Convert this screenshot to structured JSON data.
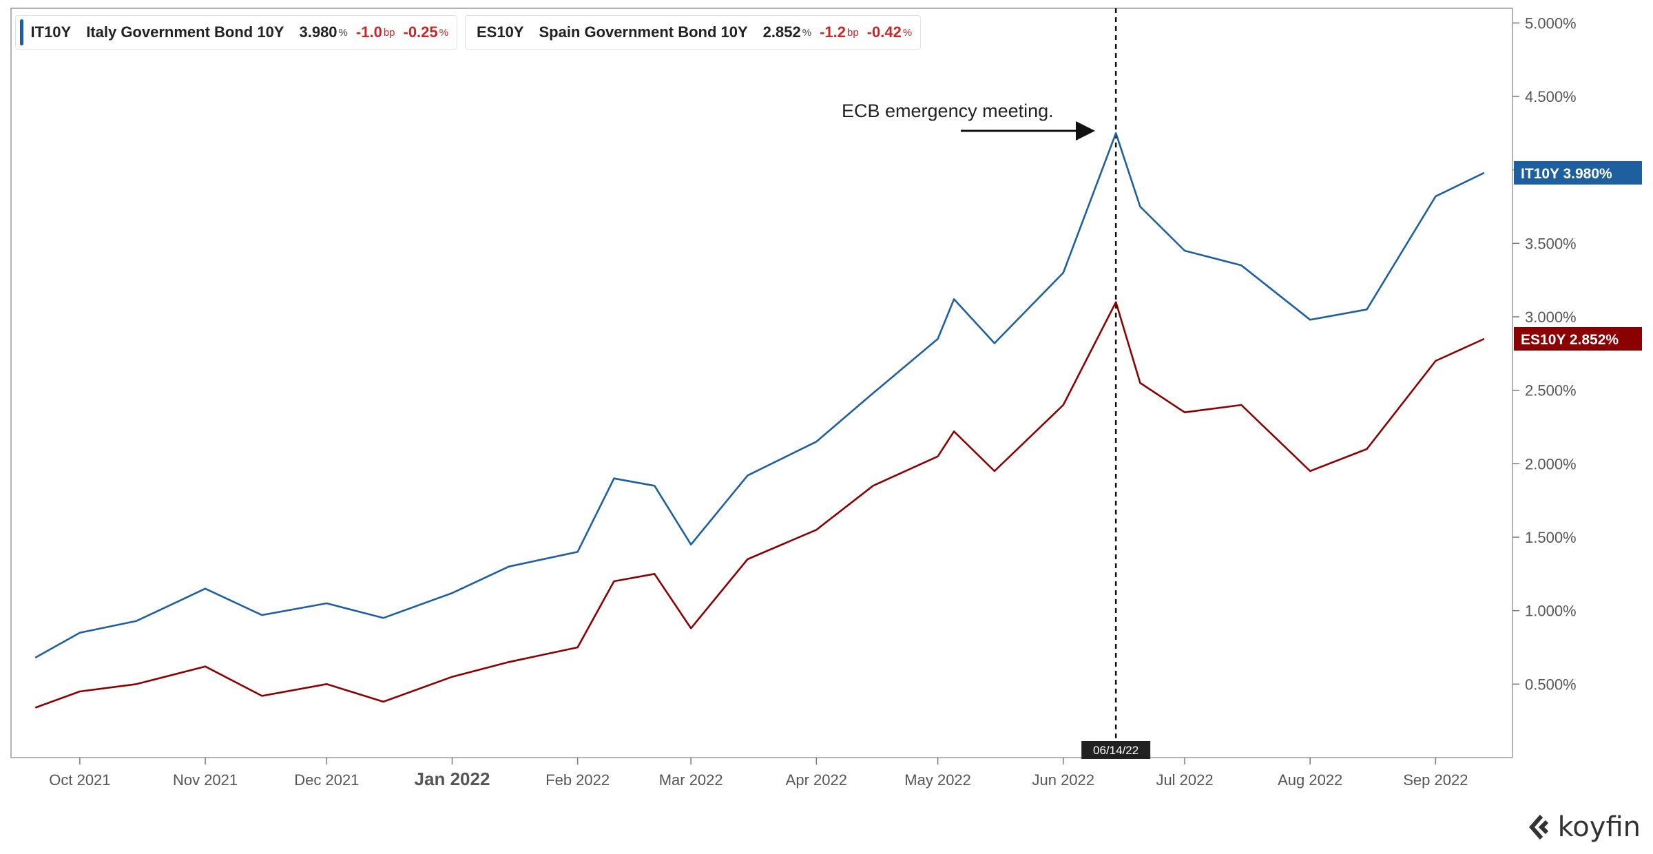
{
  "legend": [
    {
      "ticker": "IT10Y",
      "name": "Italy Government Bond 10Y",
      "value": "3.980",
      "unit": "%",
      "change": "-1.0",
      "change_unit": "bp",
      "pct": "-0.25",
      "pct_unit": "%",
      "color": "#1e5fa0"
    },
    {
      "ticker": "ES10Y",
      "name": "Spain Government Bond 10Y",
      "value": "2.852",
      "unit": "%",
      "change": "-1.2",
      "change_unit": "bp",
      "pct": "-0.42",
      "pct_unit": "%",
      "color": "#8b0000"
    }
  ],
  "brand": "koyfin",
  "chart_data": {
    "type": "line",
    "x_dates": [
      "2021-09-20",
      "2021-10-01",
      "2021-10-15",
      "2021-11-01",
      "2021-11-15",
      "2021-12-01",
      "2021-12-15",
      "2022-01-01",
      "2022-01-15",
      "2022-02-01",
      "2022-02-10",
      "2022-02-20",
      "2022-03-01",
      "2022-03-15",
      "2022-04-01",
      "2022-04-15",
      "2022-05-01",
      "2022-05-05",
      "2022-05-15",
      "2022-06-01",
      "2022-06-14",
      "2022-06-20",
      "2022-07-01",
      "2022-07-15",
      "2022-08-01",
      "2022-08-15",
      "2022-09-01",
      "2022-09-13"
    ],
    "x_ticks": [
      {
        "date": "2021-10-01",
        "label": "Oct 2021"
      },
      {
        "date": "2021-11-01",
        "label": "Nov 2021"
      },
      {
        "date": "2021-12-01",
        "label": "Dec 2021"
      },
      {
        "date": "2022-01-01",
        "label": "Jan 2022",
        "bold": true
      },
      {
        "date": "2022-02-01",
        "label": "Feb 2022"
      },
      {
        "date": "2022-03-01",
        "label": "Mar 2022"
      },
      {
        "date": "2022-04-01",
        "label": "Apr 2022"
      },
      {
        "date": "2022-05-01",
        "label": "May 2022"
      },
      {
        "date": "2022-06-01",
        "label": "Jun 2022"
      },
      {
        "date": "2022-07-01",
        "label": "Jul 2022"
      },
      {
        "date": "2022-08-01",
        "label": "Aug 2022"
      },
      {
        "date": "2022-09-01",
        "label": "Sep 2022"
      }
    ],
    "y_ticks": [
      0.5,
      1.0,
      1.5,
      2.0,
      2.5,
      3.0,
      3.5,
      4.0,
      4.5,
      5.0
    ],
    "y_tick_labels": [
      "0.500%",
      "1.000%",
      "1.500%",
      "2.000%",
      "2.500%",
      "3.000%",
      "3.500%",
      "4.000%",
      "4.500%",
      "5.000%"
    ],
    "ylim": [
      0.0,
      5.1
    ],
    "series": [
      {
        "name": "IT10Y",
        "color": "#1e5fa0",
        "last_label": "IT10Y  3.980%",
        "values": [
          0.68,
          0.85,
          0.93,
          1.15,
          0.97,
          1.05,
          0.95,
          1.12,
          1.3,
          1.4,
          1.9,
          1.85,
          1.45,
          1.92,
          2.15,
          2.48,
          2.85,
          3.12,
          2.82,
          3.3,
          4.25,
          3.75,
          3.45,
          3.35,
          2.98,
          3.05,
          3.82,
          3.98
        ]
      },
      {
        "name": "ES10Y",
        "color": "#8b0000",
        "last_label": "ES10Y  2.852%",
        "values": [
          0.34,
          0.45,
          0.5,
          0.62,
          0.42,
          0.5,
          0.38,
          0.55,
          0.65,
          0.75,
          1.2,
          1.25,
          0.88,
          1.35,
          1.55,
          1.85,
          2.05,
          2.22,
          1.95,
          2.4,
          3.1,
          2.55,
          2.35,
          2.4,
          1.95,
          2.1,
          2.7,
          2.85
        ]
      }
    ],
    "marker": {
      "date": "2022-06-14",
      "label": "06/14/22"
    },
    "annotation": {
      "text": "ECB emergency meeting."
    }
  }
}
